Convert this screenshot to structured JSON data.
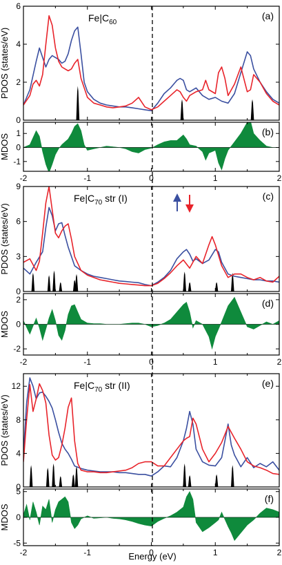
{
  "colors": {
    "spin_up": "#3a4fa0",
    "spin_down": "#e8232a",
    "mdos_fill": "#0f8a3c",
    "mos": "#000000"
  },
  "x_axis": {
    "label": "Energy (eV)",
    "range": [
      -2,
      2
    ],
    "ticks": [
      "-2",
      "-1",
      "0",
      "1",
      "2"
    ]
  },
  "legend_arrows": {
    "up_color": "#3a4fa0",
    "down_color": "#e8232a"
  },
  "chart_data": [
    {
      "type": "line",
      "id": "a",
      "tag": "(a)",
      "title": "Fe|C",
      "title_sub": "60",
      "ylabel": "PDOS (states/eV)",
      "ylim": [
        0,
        6
      ],
      "yticks": [
        "0",
        "2",
        "4",
        "6"
      ],
      "series": [
        {
          "color": "#3a4fa0",
          "x": [
            -2.0,
            -1.9,
            -1.8,
            -1.75,
            -1.7,
            -1.65,
            -1.6,
            -1.55,
            -1.5,
            -1.45,
            -1.4,
            -1.35,
            -1.3,
            -1.25,
            -1.2,
            -1.15,
            -1.1,
            -1.05,
            -1.0,
            -0.9,
            -0.8,
            -0.7,
            -0.6,
            -0.5,
            -0.4,
            -0.3,
            -0.2,
            -0.1,
            0.0,
            0.1,
            0.2,
            0.3,
            0.4,
            0.45,
            0.5,
            0.55,
            0.6,
            0.7,
            0.8,
            0.9,
            1.0,
            1.1,
            1.2,
            1.3,
            1.4,
            1.5,
            1.55,
            1.6,
            1.7,
            1.8,
            1.9,
            2.0
          ],
          "y": [
            0.8,
            1.6,
            3.1,
            3.8,
            3.3,
            2.8,
            3.2,
            3.4,
            3.3,
            3.2,
            3.0,
            3.1,
            3.5,
            4.2,
            4.7,
            4.9,
            3.5,
            2.0,
            1.5,
            1.1,
            0.9,
            0.8,
            0.75,
            0.7,
            0.7,
            0.65,
            0.6,
            0.55,
            0.5,
            0.9,
            1.4,
            1.7,
            2.1,
            2.2,
            2.1,
            1.6,
            1.5,
            1.7,
            1.3,
            1.1,
            1.2,
            1.0,
            0.9,
            1.4,
            2.5,
            3.6,
            3.4,
            2.7,
            2.0,
            1.5,
            1.1,
            0.9
          ]
        },
        {
          "color": "#e8232a",
          "x": [
            -2.0,
            -1.9,
            -1.85,
            -1.8,
            -1.75,
            -1.7,
            -1.65,
            -1.6,
            -1.55,
            -1.5,
            -1.45,
            -1.4,
            -1.35,
            -1.3,
            -1.25,
            -1.2,
            -1.15,
            -1.1,
            -1.0,
            -0.9,
            -0.8,
            -0.7,
            -0.6,
            -0.5,
            -0.4,
            -0.3,
            -0.2,
            -0.1,
            0.0,
            0.1,
            0.2,
            0.3,
            0.4,
            0.45,
            0.5,
            0.55,
            0.6,
            0.7,
            0.8,
            0.85,
            0.9,
            1.0,
            1.05,
            1.1,
            1.15,
            1.2,
            1.3,
            1.4,
            1.5,
            1.55,
            1.6,
            1.7,
            1.8,
            1.9,
            2.0
          ],
          "y": [
            0.8,
            1.3,
            1.9,
            2.1,
            1.8,
            2.4,
            4.0,
            5.5,
            5.0,
            3.8,
            3.1,
            2.8,
            2.7,
            2.6,
            2.7,
            3.0,
            3.2,
            2.2,
            1.2,
            0.9,
            0.8,
            0.7,
            0.65,
            0.7,
            0.75,
            0.9,
            1.2,
            0.7,
            0.55,
            0.7,
            1.0,
            1.3,
            1.6,
            1.5,
            1.2,
            1.0,
            1.3,
            1.5,
            1.6,
            2.1,
            1.6,
            1.4,
            2.5,
            2.8,
            2.2,
            1.3,
            1.9,
            2.8,
            1.5,
            1.6,
            2.4,
            2.0,
            1.4,
            1.0,
            0.8
          ]
        }
      ],
      "mos": [
        {
          "x": -1.15,
          "h": 1.8
        },
        {
          "x": 0.48,
          "h": 1.1
        },
        {
          "x": 1.58,
          "h": 1.1
        }
      ]
    },
    {
      "type": "area",
      "id": "b",
      "tag": "(b)",
      "ylabel": "MDOS",
      "ylim": [
        -1.7,
        1.8
      ],
      "yticks": [
        "-1",
        "0",
        "1"
      ],
      "ytick_values": [
        -1,
        0,
        1
      ],
      "x": [
        -2.0,
        -1.9,
        -1.8,
        -1.75,
        -1.7,
        -1.65,
        -1.6,
        -1.55,
        -1.5,
        -1.45,
        -1.4,
        -1.35,
        -1.3,
        -1.25,
        -1.2,
        -1.15,
        -1.1,
        -1.05,
        -1.0,
        -0.9,
        -0.8,
        -0.7,
        -0.6,
        -0.5,
        -0.4,
        -0.3,
        -0.2,
        -0.1,
        0.0,
        0.1,
        0.2,
        0.3,
        0.4,
        0.45,
        0.5,
        0.55,
        0.6,
        0.7,
        0.8,
        0.85,
        0.9,
        1.0,
        1.05,
        1.1,
        1.15,
        1.2,
        1.3,
        1.4,
        1.5,
        1.55,
        1.6,
        1.7,
        1.8,
        1.9,
        2.0
      ],
      "y": [
        0.0,
        0.2,
        1.2,
        0.8,
        -0.3,
        -1.2,
        -1.8,
        -1.2,
        -0.5,
        -0.1,
        0.2,
        0.4,
        0.6,
        1.0,
        1.5,
        1.7,
        1.2,
        0.2,
        -0.2,
        -0.1,
        0.0,
        0.1,
        0.05,
        0.0,
        -0.1,
        -0.3,
        -0.4,
        -0.15,
        -0.05,
        0.2,
        0.4,
        0.5,
        0.5,
        0.7,
        0.9,
        0.6,
        0.2,
        0.1,
        -0.3,
        -0.9,
        -0.4,
        -0.2,
        -1.1,
        -1.6,
        -0.8,
        -0.2,
        0.4,
        1.0,
        1.8,
        1.9,
        1.0,
        0.5,
        0.1,
        0.0,
        0.0
      ]
    },
    {
      "type": "line",
      "id": "c",
      "tag": "(c)",
      "title": "Fe|C",
      "title_sub": "70",
      "title_suffix": " str (I)",
      "ylabel": "PDOS (states/eV)",
      "ylim": [
        0,
        9
      ],
      "yticks": [
        "0",
        "3",
        "6",
        "9"
      ],
      "series": [
        {
          "color": "#3a4fa0",
          "x": [
            -2.0,
            -1.9,
            -1.8,
            -1.7,
            -1.65,
            -1.6,
            -1.55,
            -1.5,
            -1.45,
            -1.4,
            -1.35,
            -1.3,
            -1.25,
            -1.2,
            -1.1,
            -1.0,
            -0.9,
            -0.8,
            -0.7,
            -0.6,
            -0.5,
            -0.4,
            -0.3,
            -0.2,
            -0.1,
            0.0,
            0.1,
            0.2,
            0.3,
            0.4,
            0.5,
            0.55,
            0.6,
            0.65,
            0.7,
            0.8,
            0.9,
            1.0,
            1.05,
            1.1,
            1.2,
            1.3,
            1.4,
            1.5,
            1.6,
            1.7,
            1.8,
            1.9,
            2.0
          ],
          "y": [
            2.0,
            1.5,
            2.5,
            3.4,
            5.5,
            7.2,
            6.5,
            5.2,
            5.8,
            5.9,
            4.8,
            3.8,
            3.0,
            2.2,
            1.8,
            1.5,
            1.3,
            1.2,
            1.1,
            1.0,
            0.9,
            0.85,
            0.8,
            0.75,
            0.6,
            0.5,
            0.8,
            1.2,
            1.8,
            2.8,
            3.4,
            3.6,
            3.2,
            2.6,
            2.8,
            2.4,
            2.7,
            3.6,
            3.4,
            2.5,
            1.5,
            1.3,
            1.2,
            1.1,
            1.0,
            1.0,
            0.9,
            0.9,
            0.8
          ]
        },
        {
          "color": "#e8232a",
          "x": [
            -2.0,
            -1.9,
            -1.8,
            -1.75,
            -1.7,
            -1.65,
            -1.6,
            -1.55,
            -1.5,
            -1.45,
            -1.4,
            -1.35,
            -1.3,
            -1.25,
            -1.2,
            -1.1,
            -1.0,
            -0.9,
            -0.8,
            -0.7,
            -0.6,
            -0.5,
            -0.4,
            -0.3,
            -0.2,
            -0.1,
            0.0,
            0.1,
            0.2,
            0.3,
            0.4,
            0.5,
            0.6,
            0.7,
            0.8,
            0.9,
            0.95,
            1.0,
            1.1,
            1.2,
            1.3,
            1.4,
            1.5,
            1.6,
            1.7,
            1.8,
            1.9,
            2.0
          ],
          "y": [
            2.5,
            2.8,
            1.8,
            2.6,
            5.0,
            7.6,
            9.0,
            7.0,
            5.0,
            4.6,
            5.2,
            5.6,
            5.8,
            4.5,
            3.0,
            1.8,
            1.4,
            1.2,
            1.0,
            0.9,
            0.8,
            0.7,
            0.65,
            0.6,
            0.55,
            0.5,
            0.5,
            0.7,
            1.1,
            1.6,
            2.2,
            2.7,
            2.0,
            3.0,
            2.4,
            4.0,
            4.7,
            4.0,
            2.2,
            1.2,
            1.5,
            1.5,
            1.2,
            1.0,
            1.2,
            0.9,
            0.8,
            1.3
          ]
        }
      ],
      "mos": [
        {
          "x": -1.85,
          "h": 1.6
        },
        {
          "x": -1.6,
          "h": 1.4
        },
        {
          "x": -1.52,
          "h": 1.8
        },
        {
          "x": -1.42,
          "h": 0.8
        },
        {
          "x": -1.2,
          "h": 1.0
        },
        {
          "x": -1.17,
          "h": 1.5
        },
        {
          "x": 0.52,
          "h": 1.7
        },
        {
          "x": 0.6,
          "h": 0.8
        },
        {
          "x": 1.02,
          "h": 0.8
        },
        {
          "x": 1.27,
          "h": 1.6
        }
      ]
    },
    {
      "type": "area",
      "id": "d",
      "tag": "(d)",
      "ylabel": "MDOS",
      "ylim": [
        -2.5,
        2.5
      ],
      "yticks": [
        "-2",
        "0",
        "2"
      ],
      "ytick_values": [
        -2,
        0,
        2
      ],
      "x": [
        -2.0,
        -1.9,
        -1.8,
        -1.75,
        -1.7,
        -1.65,
        -1.6,
        -1.55,
        -1.5,
        -1.45,
        -1.4,
        -1.35,
        -1.3,
        -1.25,
        -1.2,
        -1.15,
        -1.1,
        -1.0,
        -0.9,
        -0.8,
        -0.7,
        -0.6,
        -0.5,
        -0.4,
        -0.3,
        -0.2,
        -0.1,
        0.0,
        0.1,
        0.2,
        0.3,
        0.4,
        0.5,
        0.55,
        0.6,
        0.65,
        0.7,
        0.8,
        0.9,
        0.95,
        1.0,
        1.1,
        1.2,
        1.3,
        1.4,
        1.5,
        1.6,
        1.7,
        1.8,
        1.9,
        2.0
      ],
      "y": [
        0.3,
        -0.8,
        0.5,
        -0.3,
        -1.3,
        -0.4,
        0.5,
        1.2,
        0.3,
        -0.9,
        -1.3,
        -0.5,
        0.8,
        1.5,
        1.6,
        1.0,
        0.4,
        0.1,
        0.05,
        0.05,
        0.0,
        0.0,
        0.0,
        0.05,
        0.1,
        0.1,
        0.0,
        -0.2,
        -0.1,
        0.1,
        0.4,
        1.0,
        1.6,
        1.8,
        1.0,
        -0.3,
        0.3,
        0.0,
        -1.0,
        -2.0,
        -1.0,
        0.2,
        1.5,
        2.2,
        1.0,
        -0.2,
        -0.4,
        -0.1,
        0.2,
        0.0,
        0.3
      ]
    },
    {
      "type": "line",
      "id": "e",
      "tag": "(e)",
      "title": "Fe|C",
      "title_sub": "70",
      "title_suffix": " str (II)",
      "ylabel": "PDOS (states/eV)",
      "ylim": [
        0,
        13.5
      ],
      "yticks": [
        "0",
        "4",
        "8",
        "12"
      ],
      "series": [
        {
          "color": "#3a4fa0",
          "x": [
            -2.0,
            -1.95,
            -1.9,
            -1.85,
            -1.8,
            -1.75,
            -1.7,
            -1.65,
            -1.6,
            -1.55,
            -1.5,
            -1.45,
            -1.4,
            -1.35,
            -1.3,
            -1.25,
            -1.2,
            -1.1,
            -1.0,
            -0.9,
            -0.8,
            -0.7,
            -0.6,
            -0.5,
            -0.4,
            -0.3,
            -0.2,
            -0.1,
            0.0,
            0.1,
            0.2,
            0.3,
            0.4,
            0.5,
            0.55,
            0.6,
            0.65,
            0.7,
            0.8,
            0.9,
            1.0,
            1.1,
            1.15,
            1.2,
            1.25,
            1.3,
            1.4,
            1.5,
            1.6,
            1.7,
            1.8,
            1.9,
            2.0
          ],
          "y": [
            4.0,
            10.0,
            13.0,
            12.0,
            10.5,
            11.2,
            11.3,
            10.8,
            10.2,
            9.4,
            8.0,
            6.5,
            5.2,
            4.5,
            4.0,
            3.3,
            2.5,
            2.2,
            2.0,
            1.9,
            1.8,
            1.8,
            1.8,
            1.7,
            1.7,
            1.6,
            1.5,
            1.5,
            1.3,
            1.8,
            2.5,
            2.4,
            3.5,
            5.5,
            7.0,
            9.0,
            7.5,
            4.5,
            3.0,
            2.6,
            2.5,
            3.5,
            5.5,
            7.5,
            5.0,
            3.8,
            2.4,
            3.5,
            2.3,
            2.8,
            2.4,
            3.0,
            2.0
          ]
        },
        {
          "color": "#e8232a",
          "x": [
            -2.0,
            -1.95,
            -1.9,
            -1.85,
            -1.8,
            -1.75,
            -1.7,
            -1.65,
            -1.6,
            -1.55,
            -1.5,
            -1.45,
            -1.4,
            -1.35,
            -1.3,
            -1.25,
            -1.2,
            -1.15,
            -1.1,
            -1.0,
            -0.9,
            -0.8,
            -0.7,
            -0.6,
            -0.5,
            -0.4,
            -0.3,
            -0.2,
            -0.1,
            0.0,
            0.1,
            0.2,
            0.3,
            0.4,
            0.5,
            0.55,
            0.6,
            0.65,
            0.7,
            0.8,
            0.9,
            1.0,
            1.1,
            1.2,
            1.3,
            1.4,
            1.5,
            1.6,
            1.7,
            1.8,
            1.9,
            2.0
          ],
          "y": [
            3.0,
            8.0,
            12.2,
            9.0,
            10.5,
            12.3,
            11.5,
            10.0,
            6.2,
            3.8,
            3.2,
            3.5,
            5.0,
            7.0,
            9.5,
            10.6,
            5.5,
            2.8,
            2.0,
            1.8,
            1.8,
            1.7,
            1.7,
            1.8,
            1.9,
            2.0,
            2.3,
            2.8,
            3.0,
            3.0,
            2.5,
            2.5,
            3.5,
            4.5,
            5.5,
            5.8,
            6.0,
            8.2,
            7.5,
            4.5,
            3.0,
            4.0,
            5.3,
            7.2,
            5.8,
            4.5,
            3.0,
            2.5,
            2.3,
            2.0,
            1.6,
            1.5
          ]
        }
      ],
      "mos": [
        {
          "x": -1.88,
          "h": 2.6
        },
        {
          "x": -1.62,
          "h": 2.3
        },
        {
          "x": -1.53,
          "h": 2.8
        },
        {
          "x": -1.42,
          "h": 1.3
        },
        {
          "x": -1.22,
          "h": 1.5
        },
        {
          "x": -1.17,
          "h": 2.5
        },
        {
          "x": 0.52,
          "h": 2.8
        },
        {
          "x": 0.6,
          "h": 1.4
        },
        {
          "x": 1.02,
          "h": 1.5
        },
        {
          "x": 1.27,
          "h": 2.6
        }
      ]
    },
    {
      "type": "area",
      "id": "f",
      "tag": "(f)",
      "ylabel": "MDOS",
      "ylim": [
        -5.5,
        5.5
      ],
      "yticks": [
        "-5",
        "0",
        "5"
      ],
      "ytick_values": [
        -5,
        0,
        5
      ],
      "x": [
        -2.0,
        -1.95,
        -1.9,
        -1.85,
        -1.8,
        -1.75,
        -1.7,
        -1.65,
        -1.6,
        -1.55,
        -1.5,
        -1.45,
        -1.4,
        -1.35,
        -1.3,
        -1.25,
        -1.2,
        -1.15,
        -1.1,
        -1.0,
        -0.9,
        -0.8,
        -0.7,
        -0.6,
        -0.5,
        -0.4,
        -0.3,
        -0.2,
        -0.1,
        0.0,
        0.1,
        0.2,
        0.3,
        0.4,
        0.5,
        0.55,
        0.6,
        0.65,
        0.7,
        0.8,
        0.9,
        1.0,
        1.05,
        1.1,
        1.2,
        1.25,
        1.3,
        1.4,
        1.5,
        1.6,
        1.7,
        1.8,
        1.9,
        2.0
      ],
      "y": [
        0.5,
        2.5,
        -0.5,
        3.0,
        1.0,
        -1.5,
        2.2,
        1.5,
        3.5,
        -1.0,
        1.5,
        3.0,
        3.5,
        4.0,
        3.0,
        -1.0,
        -2.2,
        -1.5,
        -0.3,
        0.3,
        -0.2,
        -0.1,
        0.0,
        -0.2,
        -0.3,
        -0.5,
        -0.8,
        -1.2,
        -1.5,
        -1.7,
        -0.8,
        -0.2,
        0.3,
        1.0,
        2.0,
        4.0,
        5.0,
        3.5,
        -1.0,
        -2.8,
        -2.0,
        -1.0,
        -0.5,
        1.0,
        -1.8,
        -3.0,
        -4.5,
        -3.0,
        -1.5,
        -0.5,
        0.8,
        1.8,
        1.5,
        1.0
      ]
    }
  ]
}
